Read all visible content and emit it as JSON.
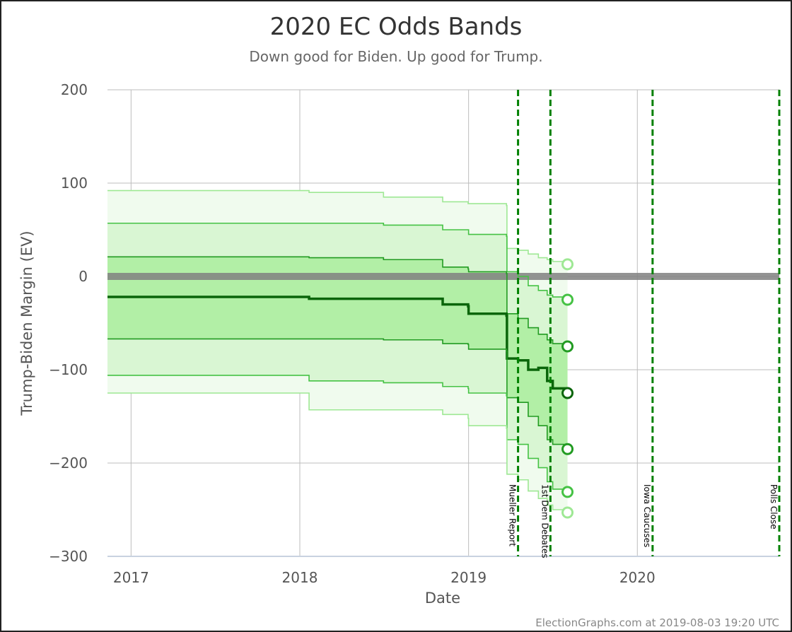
{
  "chart_data": {
    "type": "area",
    "title": "2020 EC Odds Bands",
    "subtitle": "Down good for Biden. Up good for Trump.",
    "xlabel": "Date",
    "ylabel": "Trump-Biden Margin (EV)",
    "xlim": [
      "2016-11-11",
      "2020-11-03"
    ],
    "ylim": [
      -300,
      200
    ],
    "x_ticks": [
      {
        "value": "2017-01-01",
        "label": "2017"
      },
      {
        "value": "2018-01-01",
        "label": "2018"
      },
      {
        "value": "2019-01-01",
        "label": "2019"
      },
      {
        "value": "2020-01-01",
        "label": "2020"
      }
    ],
    "y_ticks": [
      {
        "value": 200,
        "label": "200"
      },
      {
        "value": 100,
        "label": "100"
      },
      {
        "value": 0,
        "label": "0"
      },
      {
        "value": -100,
        "label": "−100"
      },
      {
        "value": -200,
        "label": "−200"
      },
      {
        "value": -300,
        "label": "−300"
      }
    ],
    "grid": true,
    "x": [
      "2016-11-11",
      "2018-01-20",
      "2018-01-21",
      "2018-06-30",
      "2018-07-01",
      "2018-11-05",
      "2018-11-06",
      "2018-12-31",
      "2019-01-01",
      "2019-03-24",
      "2019-03-25",
      "2019-04-18",
      "2019-05-10",
      "2019-06-01",
      "2019-06-20",
      "2019-07-02",
      "2019-08-03"
    ],
    "series": [
      {
        "values": [
          92,
          92,
          90,
          90,
          85,
          85,
          80,
          78,
          78,
          76,
          30,
          28,
          24,
          20,
          18,
          16,
          13
        ]
      },
      {
        "values": [
          57,
          57,
          57,
          57,
          55,
          55,
          50,
          50,
          45,
          43,
          5,
          0,
          -10,
          -15,
          -20,
          -22,
          -25
        ]
      },
      {
        "values": [
          21,
          21,
          20,
          20,
          18,
          18,
          10,
          8,
          5,
          3,
          -40,
          -45,
          -55,
          -62,
          -68,
          -72,
          -75
        ]
      },
      {
        "values": [
          -22,
          -22,
          -24,
          -24,
          -24,
          -24,
          -30,
          -32,
          -40,
          -42,
          -88,
          -90,
          -100,
          -98,
          -112,
          -120,
          -125
        ]
      },
      {
        "values": [
          -67,
          -67,
          -67,
          -67,
          -68,
          -68,
          -72,
          -73,
          -78,
          -80,
          -130,
          -135,
          -150,
          -160,
          -175,
          -180,
          -185
        ]
      },
      {
        "values": [
          -106,
          -106,
          -112,
          -112,
          -114,
          -114,
          -118,
          -120,
          -125,
          -128,
          -175,
          -180,
          -195,
          -205,
          -220,
          -228,
          -231
        ]
      },
      {
        "values": [
          -125,
          -125,
          -143,
          -143,
          -143,
          -143,
          -148,
          -152,
          -160,
          -163,
          -212,
          -218,
          -230,
          -238,
          -245,
          -250,
          -253
        ]
      }
    ],
    "band_colors": [
      "#f0fbee",
      "#d9f6d3",
      "#b2efa6"
    ],
    "line_colors": [
      "#9ee894",
      "#45c244",
      "#229b22",
      "#0a650a",
      "#229b22",
      "#45c244",
      "#9ee894"
    ],
    "tie_line": {
      "y": 0,
      "color": "#808080"
    },
    "events": [
      {
        "date": "2019-04-18",
        "label": "Mueller Report"
      },
      {
        "date": "2019-06-27",
        "label": "1st Dem Debates"
      },
      {
        "date": "2020-02-03",
        "label": "Iowa Caucuses"
      },
      {
        "date": "2020-11-03",
        "label": "Polls Close"
      }
    ],
    "event_color": "#008000",
    "credit": "ElectionGraphs.com at 2019-08-03 19:20 UTC"
  }
}
